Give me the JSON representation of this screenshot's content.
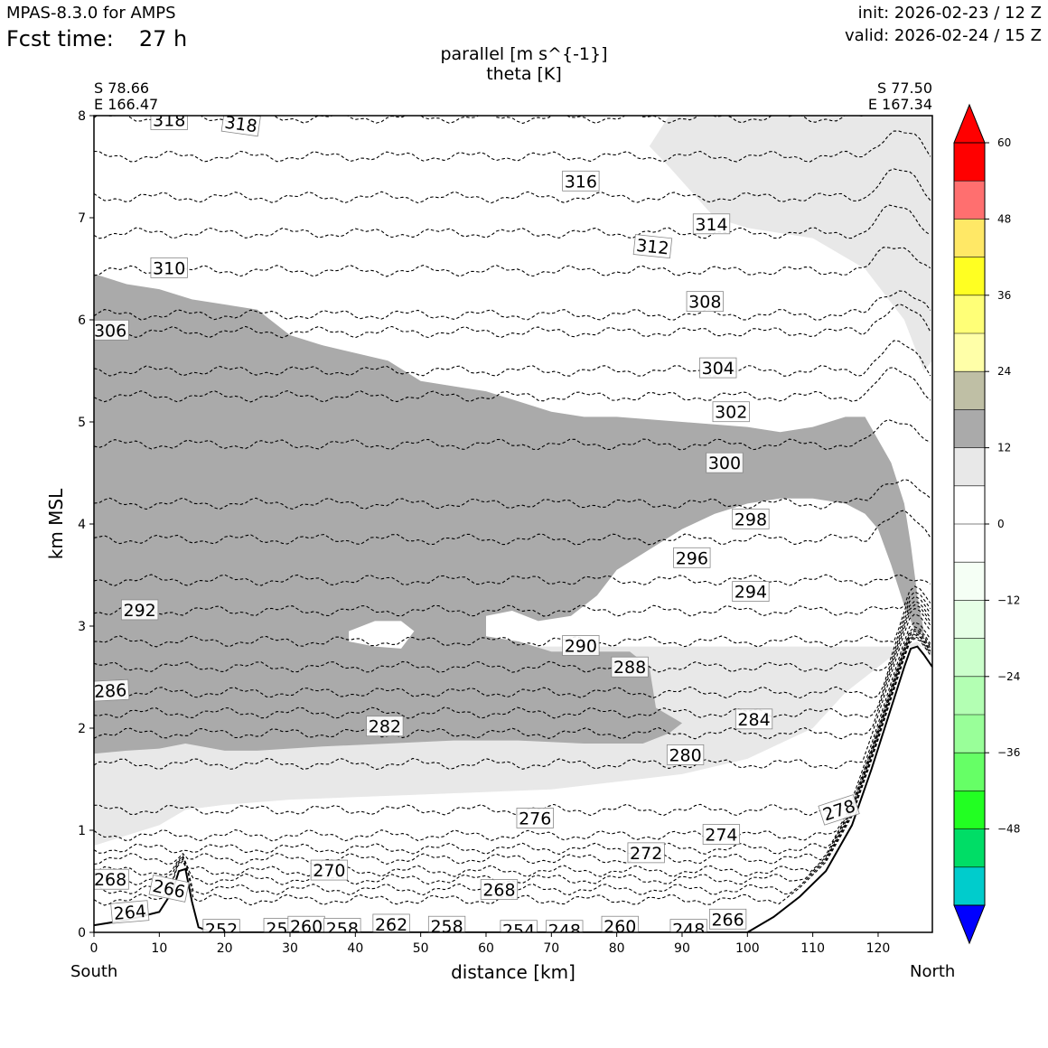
{
  "header": {
    "model": "MPAS-8.3.0 for AMPS",
    "fcst_label": "Fcst time:",
    "fcst_value": "27 h",
    "init": "init: 2026-02-23 / 12 Z",
    "valid": "valid: 2026-02-24 / 15 Z"
  },
  "section": {
    "left_lat": "S 78.66",
    "left_lon": "E 166.47",
    "right_lat": "S 77.50",
    "right_lon": "E 167.34",
    "left_end": "South",
    "right_end": "North"
  },
  "chart_data": {
    "type": "contour",
    "title": "parallel [m s^{-1}]",
    "subtitle": "theta [K]",
    "xlabel": "distance [km]",
    "ylabel": "km MSL",
    "xlim": [
      0,
      128.3
    ],
    "ylim": [
      0,
      8
    ],
    "x_ticks": [
      0,
      10,
      20,
      30,
      40,
      50,
      60,
      70,
      80,
      90,
      100,
      110,
      120
    ],
    "x_tick_labels": [
      "0",
      "10",
      "20",
      "30",
      "40",
      "50",
      "60",
      "70",
      "80",
      "90",
      "100",
      "110",
      "120"
    ],
    "y_ticks": [
      0,
      1,
      2,
      3,
      4,
      5,
      6,
      7,
      8
    ],
    "y_tick_labels": [
      "0",
      "1",
      "2",
      "3",
      "4",
      "5",
      "6",
      "7",
      "8"
    ],
    "colorbar": {
      "levels": [
        -60,
        -54,
        -48,
        -42,
        -36,
        -30,
        -24,
        -18,
        -12,
        -6,
        0,
        6,
        12,
        18,
        24,
        30,
        36,
        42,
        48,
        54,
        60
      ],
      "tick_values": [
        -48,
        -36,
        -24,
        -12,
        0,
        12,
        24,
        36,
        48,
        60
      ],
      "tick_labels": [
        "−48",
        "−36",
        "−24",
        "−12",
        "0",
        "12",
        "24",
        "36",
        "48",
        "60"
      ],
      "colors": [
        "#0000ff",
        "#00cccc",
        "#00dd66",
        "#22ff22",
        "#66ff66",
        "#99ff99",
        "#b3ffb3",
        "#ccffcc",
        "#e6ffe6",
        "#f5fff5",
        "#ffffff",
        "#ffffff",
        "#e8e8e8",
        "#aaaaaa",
        "#bfbfa5",
        "#ffffa8",
        "#ffff77",
        "#ffff22",
        "#ffe866",
        "#ff6f6f",
        "#ff0000"
      ],
      "under_color": "#0000ff",
      "over_color": "#ff0000"
    },
    "shading": [
      {
        "name": "wind-6-12",
        "level": "6 to 12",
        "color": "#e8e8e8",
        "polygon": [
          [
            0,
            0.85
          ],
          [
            5,
            0.95
          ],
          [
            10,
            1.05
          ],
          [
            14,
            1.2
          ],
          [
            20,
            1.25
          ],
          [
            30,
            1.3
          ],
          [
            50,
            1.35
          ],
          [
            70,
            1.4
          ],
          [
            90,
            1.55
          ],
          [
            100,
            1.7
          ],
          [
            110,
            2.0
          ],
          [
            115,
            2.35
          ],
          [
            120,
            2.6
          ],
          [
            124,
            2.8
          ],
          [
            126,
            2.85
          ],
          [
            128.3,
            2.7
          ],
          [
            128.3,
            8
          ],
          [
            88,
            8
          ],
          [
            85,
            7.7
          ],
          [
            88,
            7.5
          ],
          [
            95,
            7.0
          ],
          [
            100,
            6.9
          ],
          [
            110,
            6.8
          ],
          [
            118,
            6.5
          ],
          [
            124,
            6.0
          ],
          [
            127,
            5.5
          ],
          [
            128.3,
            5.6
          ],
          [
            128.3,
            2.7
          ],
          [
            128,
            2.8
          ],
          [
            0,
            2.8
          ]
        ]
      },
      {
        "name": "wind-12-18",
        "level": "12 to 18",
        "color": "#aaaaaa",
        "polygon": [
          [
            0,
            6.45
          ],
          [
            5,
            6.35
          ],
          [
            10,
            6.3
          ],
          [
            15,
            6.2
          ],
          [
            20,
            6.15
          ],
          [
            25,
            6.1
          ],
          [
            30,
            5.85
          ],
          [
            35,
            5.75
          ],
          [
            45,
            5.6
          ],
          [
            50,
            5.4
          ],
          [
            55,
            5.35
          ],
          [
            60,
            5.3
          ],
          [
            65,
            5.2
          ],
          [
            70,
            5.1
          ],
          [
            75,
            5.05
          ],
          [
            80,
            5.05
          ],
          [
            90,
            5.0
          ],
          [
            100,
            4.95
          ],
          [
            105,
            4.9
          ],
          [
            110,
            4.95
          ],
          [
            115,
            5.05
          ],
          [
            118,
            5.05
          ],
          [
            122,
            4.6
          ],
          [
            124,
            4.2
          ],
          [
            125,
            3.8
          ],
          [
            126,
            3.3
          ],
          [
            127,
            2.95
          ],
          [
            126,
            2.9
          ],
          [
            124,
            3.2
          ],
          [
            122,
            3.6
          ],
          [
            120,
            3.95
          ],
          [
            118,
            4.1
          ],
          [
            115,
            4.2
          ],
          [
            110,
            4.25
          ],
          [
            105,
            4.25
          ],
          [
            100,
            4.2
          ],
          [
            95,
            4.1
          ],
          [
            90,
            3.95
          ],
          [
            85,
            3.75
          ],
          [
            80,
            3.55
          ],
          [
            77,
            3.3
          ],
          [
            73,
            3.1
          ],
          [
            68,
            3.05
          ],
          [
            64,
            3.15
          ],
          [
            60,
            3.1
          ],
          [
            60,
            2.9
          ],
          [
            65,
            2.85
          ],
          [
            70,
            2.75
          ],
          [
            74,
            2.75
          ],
          [
            79,
            2.75
          ],
          [
            82,
            2.75
          ],
          [
            85,
            2.6
          ],
          [
            86,
            2.2
          ],
          [
            90,
            2.05
          ],
          [
            88,
            1.95
          ],
          [
            84,
            1.85
          ],
          [
            75,
            1.85
          ],
          [
            65,
            1.88
          ],
          [
            55,
            1.88
          ],
          [
            45,
            1.85
          ],
          [
            35,
            1.82
          ],
          [
            25,
            1.78
          ],
          [
            20,
            1.78
          ],
          [
            14,
            1.85
          ],
          [
            10,
            1.8
          ],
          [
            5,
            1.78
          ],
          [
            0,
            1.75
          ]
        ]
      }
    ],
    "white_holes": [
      {
        "name": "hole-upper",
        "polygon": [
          [
            68,
            7.7
          ],
          [
            70,
            7.85
          ],
          [
            72,
            7.8
          ],
          [
            73,
            7.65
          ],
          [
            70,
            7.55
          ],
          [
            68,
            7.6
          ]
        ]
      },
      {
        "name": "hole-mid",
        "polygon": [
          [
            39,
            2.95
          ],
          [
            43,
            3.05
          ],
          [
            47,
            3.05
          ],
          [
            49,
            2.95
          ],
          [
            47,
            2.78
          ],
          [
            43,
            2.8
          ],
          [
            39,
            2.85
          ]
        ]
      }
    ],
    "terrain": [
      [
        0,
        0.07
      ],
      [
        5,
        0.12
      ],
      [
        10,
        0.2
      ],
      [
        12,
        0.4
      ],
      [
        13,
        0.6
      ],
      [
        14,
        0.62
      ],
      [
        15,
        0.3
      ],
      [
        16,
        0.05
      ],
      [
        18,
        0.0
      ],
      [
        100,
        0.0
      ],
      [
        104,
        0.15
      ],
      [
        108,
        0.35
      ],
      [
        112,
        0.6
      ],
      [
        116,
        1.05
      ],
      [
        119,
        1.6
      ],
      [
        122,
        2.2
      ],
      [
        124,
        2.6
      ],
      [
        125,
        2.78
      ],
      [
        126,
        2.8
      ],
      [
        127,
        2.72
      ],
      [
        128.3,
        2.6
      ]
    ],
    "theta_contours": [
      {
        "value": 318,
        "y_left": 7.98,
        "slope": 0.0
      },
      {
        "value": 316,
        "y_left": 7.6,
        "slope": 0.0
      },
      {
        "value": 314,
        "y_left": 7.2,
        "slope": 0.0
      },
      {
        "value": 312,
        "y_left": 6.85,
        "slope": 0.0
      },
      {
        "value": 310,
        "y_left": 6.48,
        "slope": 0.0
      },
      {
        "value": 308,
        "y_left": 6.05,
        "slope": 0.0
      },
      {
        "value": 306,
        "y_left": 5.88,
        "slope": 0.0
      },
      {
        "value": 304,
        "y_left": 5.5,
        "slope": 0.0
      },
      {
        "value": 302,
        "y_left": 5.25,
        "slope": 0.0
      },
      {
        "value": 300,
        "y_left": 4.78,
        "slope": 0.0
      },
      {
        "value": 298,
        "y_left": 4.2,
        "slope": 0.0
      },
      {
        "value": 296,
        "y_left": 3.85,
        "slope": 0.0
      },
      {
        "value": 294,
        "y_left": 3.45,
        "slope": 0.0
      },
      {
        "value": 292,
        "y_left": 3.15,
        "slope": 0.0
      },
      {
        "value": 290,
        "y_left": 2.85,
        "slope": 0.0
      },
      {
        "value": 288,
        "y_left": 2.6,
        "slope": 0.0
      },
      {
        "value": 286,
        "y_left": 2.35,
        "slope": 0.0
      },
      {
        "value": 284,
        "y_left": 2.15,
        "slope": 0.0
      },
      {
        "value": 282,
        "y_left": 1.95,
        "slope": 0.0
      },
      {
        "value": 280,
        "y_left": 1.65,
        "slope": 0.0
      },
      {
        "value": 278,
        "y_left": 1.2,
        "slope": 0.0
      },
      {
        "value": 276,
        "y_left": 0.95,
        "slope": 0.0
      },
      {
        "value": 274,
        "y_left": 0.82,
        "slope": 0.0
      },
      {
        "value": 272,
        "y_left": 0.72,
        "slope": 0.0
      },
      {
        "value": 270,
        "y_left": 0.6,
        "slope": 0.0
      },
      {
        "value": 268,
        "y_left": 0.52,
        "slope": 0.0
      },
      {
        "value": 266,
        "y_left": 0.42,
        "slope": 0.0
      },
      {
        "value": 264,
        "y_left": 0.32,
        "slope": 0.0
      }
    ],
    "contour_labels": [
      {
        "text": "318",
        "x": 11.5,
        "y": 7.96,
        "rot": 0
      },
      {
        "text": "318",
        "x": 22.5,
        "y": 7.92,
        "rot": 8
      },
      {
        "text": "316",
        "x": 74.5,
        "y": 7.36,
        "rot": 0
      },
      {
        "text": "314",
        "x": 94.5,
        "y": 6.94,
        "rot": 0
      },
      {
        "text": "312",
        "x": 85.5,
        "y": 6.72,
        "rot": 6
      },
      {
        "text": "310",
        "x": 11.5,
        "y": 6.51,
        "rot": 0
      },
      {
        "text": "308",
        "x": 93.5,
        "y": 6.18,
        "rot": 0
      },
      {
        "text": "306",
        "x": 2.5,
        "y": 5.9,
        "rot": 0
      },
      {
        "text": "304",
        "x": 95.5,
        "y": 5.53,
        "rot": 0
      },
      {
        "text": "302",
        "x": 97.5,
        "y": 5.1,
        "rot": 0
      },
      {
        "text": "300",
        "x": 96.5,
        "y": 4.6,
        "rot": 0
      },
      {
        "text": "298",
        "x": 100.5,
        "y": 4.05,
        "rot": 0
      },
      {
        "text": "296",
        "x": 91.5,
        "y": 3.67,
        "rot": 0
      },
      {
        "text": "294",
        "x": 100.5,
        "y": 3.34,
        "rot": 0
      },
      {
        "text": "292",
        "x": 7,
        "y": 3.16,
        "rot": 0
      },
      {
        "text": "290",
        "x": 74.5,
        "y": 2.81,
        "rot": 0
      },
      {
        "text": "288",
        "x": 82,
        "y": 2.6,
        "rot": 0
      },
      {
        "text": "286",
        "x": 2.5,
        "y": 2.37,
        "rot": -3
      },
      {
        "text": "284",
        "x": 101,
        "y": 2.09,
        "rot": 0
      },
      {
        "text": "282",
        "x": 44.5,
        "y": 2.02,
        "rot": 0
      },
      {
        "text": "280",
        "x": 90.5,
        "y": 1.74,
        "rot": 0
      },
      {
        "text": "278",
        "x": 114,
        "y": 1.2,
        "rot": -18
      },
      {
        "text": "276",
        "x": 67.5,
        "y": 1.12,
        "rot": 0
      },
      {
        "text": "274",
        "x": 96,
        "y": 0.96,
        "rot": 0
      },
      {
        "text": "272",
        "x": 84.5,
        "y": 0.78,
        "rot": 0
      },
      {
        "text": "270",
        "x": 36,
        "y": 0.61,
        "rot": 0
      },
      {
        "text": "268",
        "x": 2.5,
        "y": 0.52,
        "rot": 0
      },
      {
        "text": "268",
        "x": 62,
        "y": 0.42,
        "rot": 0
      },
      {
        "text": "266",
        "x": 11.5,
        "y": 0.43,
        "rot": 12
      },
      {
        "text": "264",
        "x": 5.5,
        "y": 0.2,
        "rot": -5
      },
      {
        "text": "266",
        "x": 97,
        "y": 0.13,
        "rot": 0
      },
      {
        "text": "252",
        "x": 19.5,
        "y": 0.03,
        "rot": 0
      },
      {
        "text": "25",
        "x": 28,
        "y": 0.04,
        "rot": 0
      },
      {
        "text": "260",
        "x": 32.5,
        "y": 0.06,
        "rot": 0
      },
      {
        "text": "258",
        "x": 38,
        "y": 0.04,
        "rot": 0
      },
      {
        "text": "262",
        "x": 45.5,
        "y": 0.08,
        "rot": 0
      },
      {
        "text": "258",
        "x": 54,
        "y": 0.06,
        "rot": 0
      },
      {
        "text": "254",
        "x": 65,
        "y": 0.02,
        "rot": 0
      },
      {
        "text": "248",
        "x": 72,
        "y": 0.02,
        "rot": 0
      },
      {
        "text": "260",
        "x": 80.5,
        "y": 0.06,
        "rot": 0
      },
      {
        "text": "248",
        "x": 91,
        "y": 0.03,
        "rot": 0
      }
    ]
  }
}
